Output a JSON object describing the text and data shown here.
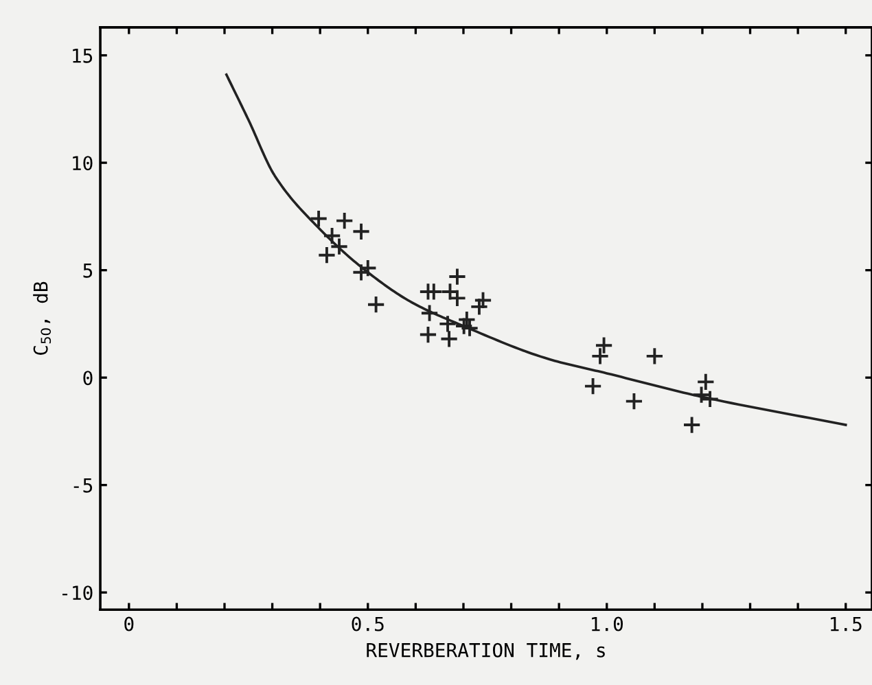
{
  "chart_data": {
    "type": "scatter",
    "xlabel": "REVERBERATION TIME, s",
    "ylabel": "C$_{50}$, dB",
    "xlim": [
      -0.06,
      1.555
    ],
    "ylim": [
      -10.8,
      16.3
    ],
    "xticks": [
      0,
      {
        "value": 0.1,
        "label": null
      },
      {
        "value": 0.2,
        "label": null
      },
      {
        "value": 0.3,
        "label": null
      },
      {
        "value": 0.4,
        "label": null
      },
      0.5,
      {
        "value": 0.6,
        "label": null
      },
      {
        "value": 0.7,
        "label": null
      },
      {
        "value": 0.8,
        "label": null
      },
      {
        "value": 0.9,
        "label": null
      },
      {
        "value": 1.0,
        "label": "1.0"
      },
      {
        "value": 1.1,
        "label": null
      },
      {
        "value": 1.2,
        "label": null
      },
      {
        "value": 1.3,
        "label": null
      },
      {
        "value": 1.4,
        "label": null
      },
      1.5
    ],
    "yticks": [
      -10,
      -5,
      0,
      5,
      10,
      15
    ],
    "grid": false,
    "series": [
      {
        "marker": "cross",
        "color": "#222222",
        "x": [
          0.397,
          0.451,
          0.425,
          0.486,
          0.44,
          0.414,
          0.486,
          0.5,
          0.517,
          0.687,
          0.626,
          0.638,
          0.672,
          0.687,
          0.741,
          0.733,
          0.629,
          0.667,
          0.707,
          0.713,
          0.701,
          0.626,
          0.67,
          0.994,
          0.986,
          1.1,
          0.971,
          1.057,
          1.207,
          1.198,
          1.216,
          1.178
        ],
        "values": [
          7.4,
          7.3,
          6.6,
          6.8,
          6.1,
          5.7,
          4.9,
          5.1,
          3.4,
          4.7,
          4.0,
          4.0,
          4.0,
          3.7,
          3.6,
          3.3,
          3.0,
          2.5,
          2.7,
          2.3,
          2.4,
          2.0,
          1.8,
          1.5,
          1.0,
          1.0,
          -0.4,
          -1.1,
          -0.2,
          -0.8,
          -1.0,
          -2.2
        ]
      },
      {
        "type": "line",
        "marker": "none",
        "line_style": "solid",
        "color": "#222222",
        "x": [
          0.204,
          0.25,
          0.305,
          0.4,
          0.5,
          0.592,
          0.7,
          0.879,
          1.0,
          1.2,
          1.5
        ],
        "values": [
          14.1,
          12.0,
          9.4,
          6.9,
          4.9,
          3.5,
          2.4,
          0.86,
          0.2,
          -0.9,
          -2.2
        ]
      }
    ]
  }
}
